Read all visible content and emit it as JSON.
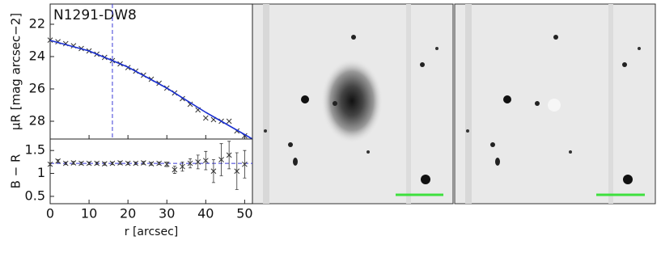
{
  "chart_data": [
    {
      "type": "scatter",
      "annotation": "N1291-DW8",
      "ylabel": "μR [mag arcsec−2]",
      "xlim": [
        0,
        52
      ],
      "ylim": [
        29.1,
        20.75
      ],
      "xticks": [
        0,
        10,
        20,
        30,
        40,
        50
      ],
      "yticks": [
        22,
        24,
        26,
        28
      ],
      "vline": 16,
      "vline_color": "#3b3bd6",
      "series": [
        {
          "marker": "x",
          "color": "#333333",
          "x": [
            0,
            2,
            4,
            6,
            8,
            10,
            12,
            14,
            16,
            18,
            20,
            22,
            24,
            26,
            28,
            30,
            32,
            34,
            36,
            38,
            40,
            42,
            44,
            46,
            48,
            50
          ],
          "values": [
            22.98,
            23.08,
            23.2,
            23.33,
            23.5,
            23.65,
            23.85,
            24.05,
            24.25,
            24.45,
            24.68,
            24.9,
            25.15,
            25.4,
            25.65,
            25.95,
            26.25,
            26.6,
            26.95,
            27.3,
            27.8,
            27.9,
            28.0,
            28.0,
            28.6,
            28.9
          ]
        },
        {
          "marker": "line",
          "color": "#1a2fd0",
          "x": [
            0,
            10,
            20,
            30,
            40,
            52
          ],
          "values": [
            23.0,
            23.65,
            24.65,
            25.95,
            27.45,
            29.1
          ]
        }
      ]
    },
    {
      "type": "scatter",
      "xlabel": "r [arcsec]",
      "ylabel": "B − R",
      "xlim": [
        0,
        52
      ],
      "ylim": [
        0.34,
        1.75
      ],
      "xticks": [
        0,
        10,
        20,
        30,
        40,
        50
      ],
      "yticks": [
        0.5,
        1.0,
        1.5
      ],
      "hline": 1.22,
      "hline_color": "#3b3bd6",
      "series": [
        {
          "marker": "x",
          "color": "#333333",
          "x": [
            0,
            2,
            4,
            6,
            8,
            10,
            12,
            14,
            16,
            18,
            20,
            22,
            24,
            26,
            28,
            30,
            32,
            34,
            36,
            38,
            40,
            42,
            44,
            46,
            48,
            50
          ],
          "values": [
            1.2,
            1.27,
            1.22,
            1.23,
            1.22,
            1.22,
            1.22,
            1.21,
            1.22,
            1.23,
            1.22,
            1.22,
            1.23,
            1.21,
            1.22,
            1.2,
            1.08,
            1.15,
            1.22,
            1.25,
            1.28,
            1.05,
            1.3,
            1.4,
            1.05,
            1.2
          ],
          "errors": [
            0.03,
            0.03,
            0.03,
            0.03,
            0.03,
            0.03,
            0.03,
            0.03,
            0.03,
            0.03,
            0.03,
            0.03,
            0.03,
            0.03,
            0.03,
            0.05,
            0.08,
            0.1,
            0.1,
            0.15,
            0.2,
            0.25,
            0.35,
            0.3,
            0.4,
            0.3
          ]
        }
      ]
    }
  ]
}
